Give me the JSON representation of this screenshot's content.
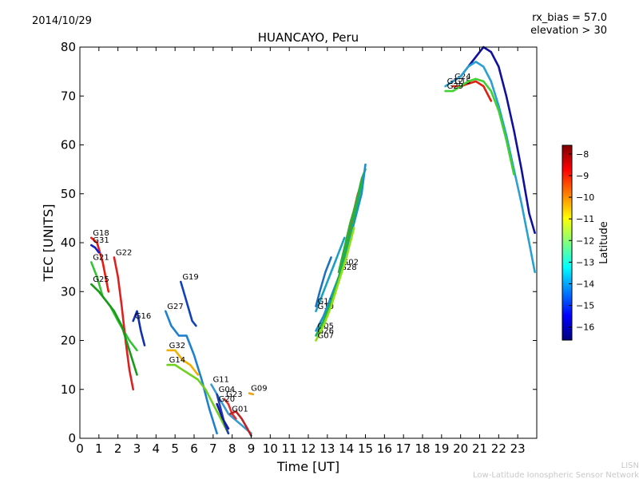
{
  "header": {
    "date": "2014/10/29",
    "rx_bias": "rx_bias = 57.0",
    "elevation": "elevation > 30"
  },
  "footer": {
    "line1": "LISN",
    "line2": "Low-Latitude Ionospheric Sensor Network"
  },
  "colorbar": {
    "label": "Latitude",
    "ticks": [
      -8,
      -9,
      -10,
      -11,
      -12,
      -13,
      -14,
      -15,
      -16
    ],
    "range": [
      -16.6,
      -7.6
    ],
    "colormap": [
      "#00007f",
      "#0000ff",
      "#007fff",
      "#00ffff",
      "#7fff7f",
      "#ffff00",
      "#ff7f00",
      "#ff0000",
      "#7f0000"
    ]
  },
  "chart_data": {
    "type": "scatter",
    "title": "HUANCAYO, Peru",
    "xlabel": "Time [UT]",
    "ylabel": "TEC [UNITS]",
    "xlim": [
      0,
      24
    ],
    "ylim": [
      0,
      80
    ],
    "xticks": [
      0,
      1,
      2,
      3,
      4,
      5,
      6,
      7,
      8,
      9,
      10,
      11,
      12,
      13,
      14,
      15,
      16,
      17,
      18,
      19,
      20,
      21,
      22,
      23
    ],
    "yticks": [
      0,
      10,
      20,
      30,
      40,
      50,
      60,
      70,
      80
    ],
    "grid": false,
    "series": [
      {
        "name": "G18",
        "color": "#ee1a10",
        "x": [
          0.6,
          0.9,
          1.2,
          1.5
        ],
        "y": [
          41,
          40,
          36,
          30
        ]
      },
      {
        "name": "G31",
        "color": "#1020c8",
        "x": [
          0.6,
          0.8,
          1.0
        ],
        "y": [
          39.5,
          39,
          38
        ]
      },
      {
        "name": "G21",
        "color": "#35c435",
        "x": [
          0.6,
          0.9,
          1.2,
          1.6,
          2.0,
          2.3,
          2.6,
          3.0
        ],
        "y": [
          36,
          33,
          29,
          27,
          24,
          22,
          20,
          18
        ]
      },
      {
        "name": "G22",
        "color": "#e02020",
        "x": [
          1.8,
          2.0,
          2.2,
          2.4,
          2.6,
          2.8
        ],
        "y": [
          37,
          33,
          27,
          20,
          14,
          10
        ]
      },
      {
        "name": "G25",
        "color": "#1a9a1a",
        "x": [
          0.6,
          1.0,
          1.4,
          1.8,
          2.2,
          2.6,
          3.0
        ],
        "y": [
          31.5,
          30,
          28,
          26,
          23,
          18,
          13
        ]
      },
      {
        "name": "G16",
        "color": "#1030b0",
        "x": [
          2.8,
          3.0,
          3.2,
          3.4
        ],
        "y": [
          24,
          26,
          22,
          19
        ]
      },
      {
        "name": "G27",
        "color": "#2080d0",
        "x": [
          4.5,
          4.8,
          5.2,
          5.6,
          6.0,
          6.4,
          6.8,
          7.2
        ],
        "y": [
          26,
          23,
          21,
          21,
          17,
          12,
          6,
          1
        ]
      },
      {
        "name": "G19",
        "color": "#1040c0",
        "x": [
          5.3,
          5.6,
          5.9,
          6.1
        ],
        "y": [
          32,
          28,
          24,
          23
        ]
      },
      {
        "name": "G32",
        "color": "#f0b000",
        "x": [
          4.6,
          5.0,
          5.4,
          5.8,
          6.2
        ],
        "y": [
          18,
          18,
          16,
          15,
          13
        ]
      },
      {
        "name": "G14",
        "color": "#70d020",
        "x": [
          4.6,
          5.0,
          5.4,
          5.8,
          6.2,
          6.6,
          7.0,
          7.4,
          7.8
        ],
        "y": [
          15,
          15,
          14,
          13,
          12,
          10,
          7,
          4,
          1
        ]
      },
      {
        "name": "G11",
        "color": "#3a9ad0",
        "x": [
          6.9,
          7.2,
          7.5,
          7.8,
          8.1,
          8.4,
          8.7,
          9.0
        ],
        "y": [
          11,
          9,
          7,
          5,
          4,
          3,
          2,
          1
        ]
      },
      {
        "name": "G04",
        "color": "#2040b0",
        "x": [
          7.2,
          7.4,
          7.6,
          7.8
        ],
        "y": [
          9,
          6,
          3,
          1
        ]
      },
      {
        "name": "G23",
        "color": "#e03030",
        "x": [
          7.6,
          7.8,
          8.0,
          8.2
        ],
        "y": [
          8,
          7,
          5,
          4
        ]
      },
      {
        "name": "G20",
        "color": "#1a1aa0",
        "x": [
          7.2,
          7.5,
          7.8
        ],
        "y": [
          7,
          4,
          2
        ]
      },
      {
        "name": "G01",
        "color": "#c02020",
        "x": [
          7.9,
          8.2,
          8.5,
          8.8,
          9.0
        ],
        "y": [
          5,
          5.5,
          4,
          2,
          0.5
        ]
      },
      {
        "name": "G09",
        "color": "#f0a010",
        "x": [
          8.9,
          9.1
        ],
        "y": [
          9.2,
          9
        ]
      },
      {
        "name": "G10",
        "color": "#1aa0c0",
        "x": [
          12.4,
          12.7,
          13.0,
          13.3,
          13.6,
          13.9
        ],
        "y": [
          26,
          29,
          32,
          35,
          38,
          41
        ]
      },
      {
        "name": "G02",
        "color": "#e04040",
        "x": [
          13.7,
          14.0,
          14.3,
          14.6,
          14.9
        ],
        "y": [
          35,
          40,
          45,
          50,
          53
        ]
      },
      {
        "name": "G28",
        "color": "#30b030",
        "x": [
          13.6,
          13.9,
          14.2,
          14.5,
          14.8,
          15.0
        ],
        "y": [
          34,
          39,
          44,
          48,
          53,
          55
        ]
      },
      {
        "name": "G05",
        "color": "#1a90d0",
        "x": [
          12.4,
          12.8,
          13.2,
          13.6,
          14.0,
          14.4,
          14.8,
          15.0
        ],
        "y": [
          22,
          25,
          29,
          33,
          38,
          44,
          50,
          56
        ]
      },
      {
        "name": "G13",
        "color": "#2070c0",
        "x": [
          12.4,
          12.6,
          12.9,
          13.2
        ],
        "y": [
          27,
          30,
          34,
          37
        ]
      },
      {
        "name": "G26",
        "color": "#20b050",
        "x": [
          12.4,
          12.8,
          13.2,
          13.6,
          14.0,
          14.4,
          14.8
        ],
        "y": [
          21,
          24,
          28,
          33,
          39,
          45,
          52
        ]
      },
      {
        "name": "G07",
        "color": "#90e010",
        "x": [
          12.4,
          12.8,
          13.2,
          13.6,
          14.0,
          14.4
        ],
        "y": [
          20,
          23,
          27,
          32,
          37,
          43
        ]
      },
      {
        "name": "G24",
        "color": "#1010a0",
        "x": [
          19.6,
          20.0,
          20.4,
          20.8,
          21.2,
          21.6,
          22.0,
          22.4,
          22.8,
          23.2,
          23.6,
          23.9
        ],
        "y": [
          73,
          74,
          76,
          78,
          80,
          79,
          76,
          70,
          63,
          55,
          46,
          42
        ]
      },
      {
        "name": "G12",
        "color": "#2aa0d0",
        "x": [
          19.2,
          19.6,
          20.0,
          20.4,
          20.8,
          21.2,
          21.6,
          22.0,
          22.4,
          22.8,
          23.2,
          23.6,
          23.9
        ],
        "y": [
          72,
          73,
          74,
          76,
          77,
          76,
          73,
          68,
          62,
          55,
          48,
          40,
          34
        ]
      },
      {
        "name": "G15",
        "color": "#e02010",
        "x": [
          19.6,
          20.0,
          20.4,
          20.8,
          21.2,
          21.6
        ],
        "y": [
          72,
          72,
          72.5,
          73,
          72,
          69
        ]
      },
      {
        "name": "G29",
        "color": "#40d030",
        "x": [
          19.2,
          19.6,
          20.0,
          20.4,
          20.8,
          21.2,
          21.6,
          22.0,
          22.4,
          22.8
        ],
        "y": [
          71,
          71,
          72,
          73,
          73.5,
          73,
          71,
          67,
          61,
          54
        ]
      }
    ]
  }
}
